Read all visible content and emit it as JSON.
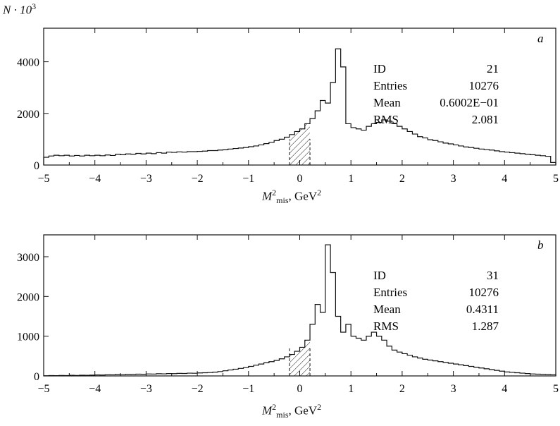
{
  "figure": {
    "y_axis_label": "N · 10",
    "y_axis_label_sup": "3"
  },
  "chart_data": [
    {
      "type": "bar",
      "panel_label": "a",
      "xlabel": "M²mis, GeV²",
      "xlabel_parts": {
        "main": "M",
        "sub": "mis",
        "sup": "2",
        "unit": "GeV",
        "unit_sup": "2"
      },
      "xlim": [
        -5,
        5
      ],
      "ylim": [
        0,
        5300
      ],
      "xticks": [
        "−5",
        "−4",
        "−3",
        "−2",
        "−1",
        "0",
        "1",
        "2",
        "3",
        "4",
        "5"
      ],
      "yticks": [
        0,
        2000,
        4000
      ],
      "bins": {
        "start": -5.0,
        "width": 0.1
      },
      "values": [
        300,
        350,
        380,
        360,
        380,
        350,
        370,
        350,
        380,
        360,
        380,
        360,
        390,
        370,
        420,
        400,
        430,
        420,
        450,
        430,
        460,
        440,
        480,
        460,
        500,
        490,
        510,
        500,
        520,
        520,
        530,
        540,
        560,
        560,
        580,
        590,
        620,
        640,
        660,
        680,
        710,
        740,
        780,
        830,
        880,
        950,
        1000,
        1080,
        1180,
        1300,
        1400,
        1600,
        1800,
        2100,
        2500,
        2400,
        3200,
        4500,
        3800,
        1600,
        1450,
        1400,
        1350,
        1500,
        1600,
        1650,
        1750,
        1700,
        1600,
        1500,
        1400,
        1300,
        1200,
        1100,
        1050,
        980,
        950,
        900,
        850,
        820,
        780,
        740,
        700,
        680,
        650,
        620,
        600,
        580,
        550,
        520,
        500,
        480,
        460,
        440,
        420,
        400,
        380,
        360,
        340,
        100
      ],
      "hatched_region": [
        -0.2,
        0.2
      ],
      "stats": [
        {
          "label": "ID",
          "value": "21"
        },
        {
          "label": "Entries",
          "value": "10276"
        },
        {
          "label": "Mean",
          "value": "0.6002E−01"
        },
        {
          "label": "RMS",
          "value": "2.081"
        }
      ]
    },
    {
      "type": "bar",
      "panel_label": "b",
      "xlabel": "M²mis, GeV²",
      "xlabel_parts": {
        "main": "M",
        "sub": "mis",
        "sup": "2",
        "unit": "GeV",
        "unit_sup": "2"
      },
      "xlim": [
        -5,
        5
      ],
      "ylim": [
        0,
        3550
      ],
      "xticks": [
        "−5",
        "−4",
        "−3",
        "−2",
        "−1",
        "0",
        "1",
        "2",
        "3",
        "4",
        "5"
      ],
      "yticks": [
        0,
        1000,
        2000,
        3000
      ],
      "bins": {
        "start": -5.0,
        "width": 0.1
      },
      "values": [
        5,
        10,
        8,
        12,
        10,
        15,
        12,
        18,
        15,
        20,
        25,
        22,
        30,
        28,
        35,
        32,
        40,
        38,
        45,
        42,
        50,
        48,
        55,
        52,
        60,
        58,
        65,
        62,
        70,
        68,
        75,
        80,
        85,
        95,
        110,
        130,
        150,
        170,
        190,
        210,
        240,
        270,
        300,
        330,
        360,
        390,
        430,
        480,
        540,
        620,
        720,
        900,
        1300,
        1800,
        1600,
        3300,
        2600,
        1500,
        1100,
        1300,
        1000,
        950,
        900,
        1000,
        1100,
        1000,
        900,
        750,
        650,
        600,
        560,
        520,
        480,
        450,
        420,
        400,
        380,
        360,
        340,
        320,
        300,
        280,
        260,
        240,
        220,
        200,
        180,
        160,
        140,
        120,
        100,
        90,
        80,
        70,
        60,
        50,
        45,
        40,
        35,
        30
      ],
      "hatched_region": [
        -0.2,
        0.2
      ],
      "stats": [
        {
          "label": "ID",
          "value": "31"
        },
        {
          "label": "Entries",
          "value": "10276"
        },
        {
          "label": "Mean",
          "value": "0.4311"
        },
        {
          "label": "RMS",
          "value": "1.287"
        }
      ]
    }
  ]
}
